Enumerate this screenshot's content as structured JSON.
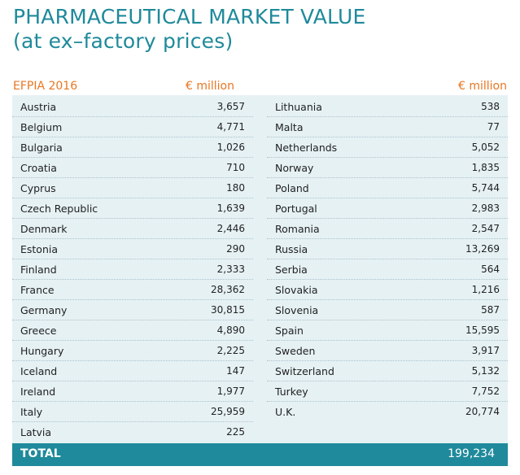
{
  "title": {
    "line1": "PHARMACEUTICAL MARKET VALUE",
    "line2": "(at ex–factory prices)"
  },
  "header": {
    "source": "EFPIA 2016",
    "unit_left": "€ million",
    "unit_right": "€ million"
  },
  "left_rows": [
    {
      "country": "Austria",
      "value": "3,657"
    },
    {
      "country": "Belgium",
      "value": "4,771"
    },
    {
      "country": "Bulgaria",
      "value": "1,026"
    },
    {
      "country": "Croatia",
      "value": "710"
    },
    {
      "country": "Cyprus",
      "value": "180"
    },
    {
      "country": "Czech Republic",
      "value": "1,639"
    },
    {
      "country": "Denmark",
      "value": "2,446"
    },
    {
      "country": "Estonia",
      "value": "290"
    },
    {
      "country": "Finland",
      "value": "2,333"
    },
    {
      "country": "France",
      "value": "28,362"
    },
    {
      "country": "Germany",
      "value": "30,815"
    },
    {
      "country": "Greece",
      "value": "4,890"
    },
    {
      "country": "Hungary",
      "value": "2,225"
    },
    {
      "country": "Iceland",
      "value": "147"
    },
    {
      "country": "Ireland",
      "value": "1,977"
    },
    {
      "country": "Italy",
      "value": "25,959"
    },
    {
      "country": "Latvia",
      "value": "225"
    }
  ],
  "right_rows": [
    {
      "country": "Lithuania",
      "value": "538"
    },
    {
      "country": "Malta",
      "value": "77"
    },
    {
      "country": "Netherlands",
      "value": "5,052"
    },
    {
      "country": "Norway",
      "value": "1,835"
    },
    {
      "country": "Poland",
      "value": "5,744"
    },
    {
      "country": "Portugal",
      "value": "2,983"
    },
    {
      "country": "Romania",
      "value": "2,547"
    },
    {
      "country": "Russia",
      "value": "13,269"
    },
    {
      "country": "Serbia",
      "value": "564"
    },
    {
      "country": "Slovakia",
      "value": "1,216"
    },
    {
      "country": "Slovenia",
      "value": "587"
    },
    {
      "country": "Spain",
      "value": "15,595"
    },
    {
      "country": "Sweden",
      "value": "3,917"
    },
    {
      "country": "Switzerland",
      "value": "5,132"
    },
    {
      "country": "Turkey",
      "value": "7,752"
    },
    {
      "country": "U.K.",
      "value": "20,774"
    }
  ],
  "total": {
    "label": "TOTAL",
    "value": "199,234"
  },
  "colors": {
    "teal": "#1f8a9b",
    "orange": "#e87722",
    "panel": "#e6f1f4"
  }
}
